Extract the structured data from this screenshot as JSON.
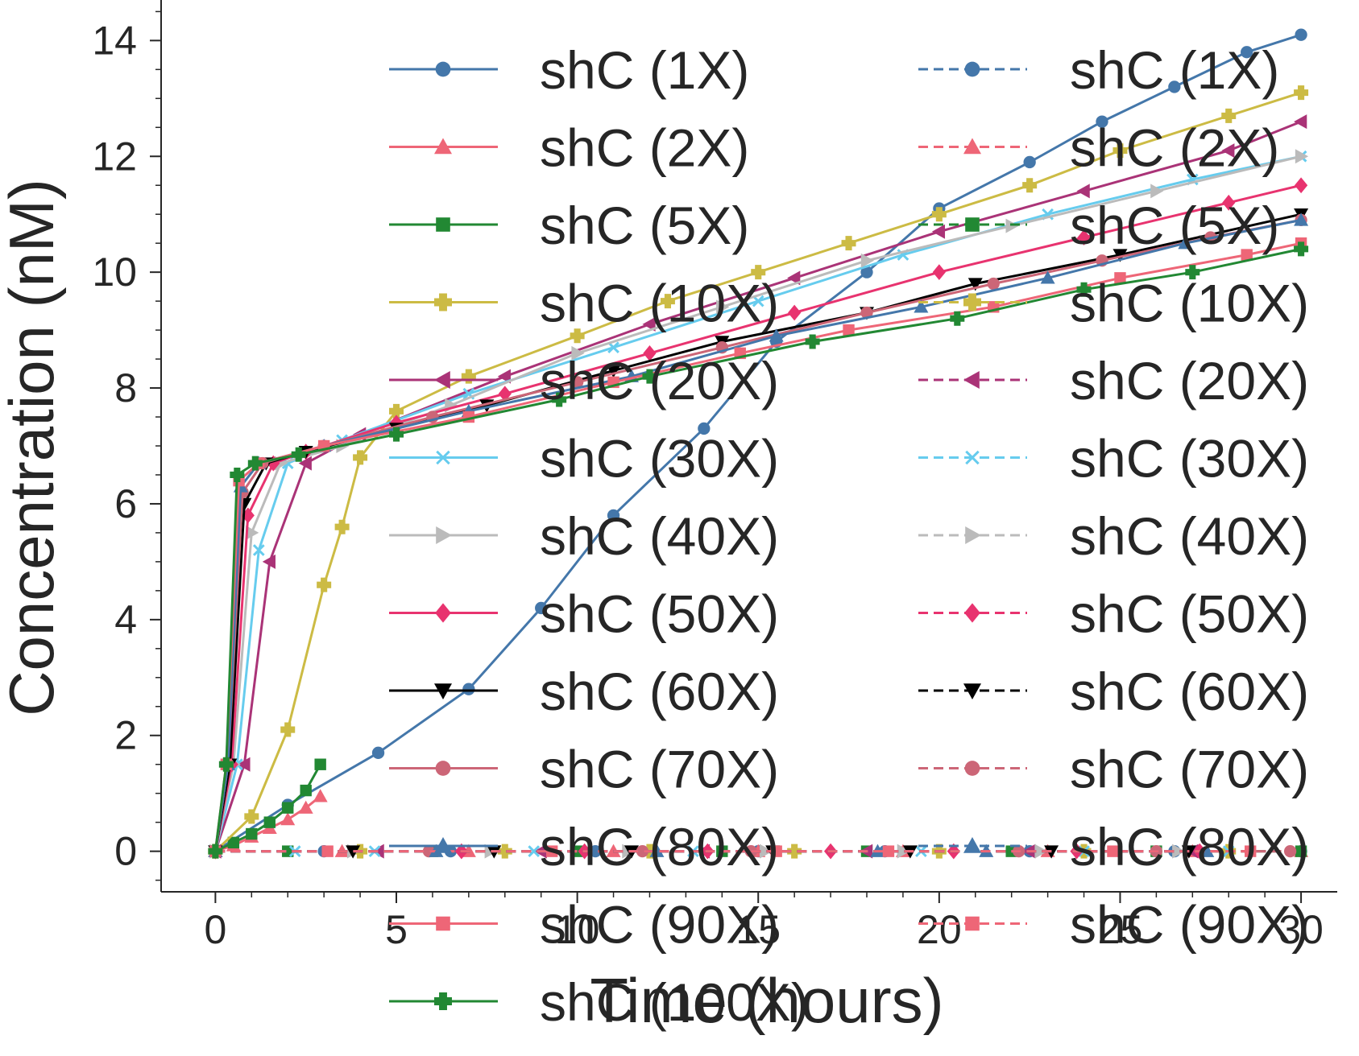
{
  "chart_data": {
    "type": "line",
    "xlabel": "Time (hours)",
    "ylabel": "Concentration (nM)",
    "xlim": [
      -1.5,
      31
    ],
    "ylim": [
      -0.7,
      14.7
    ],
    "xticks": [
      0,
      5,
      10,
      15,
      20,
      25,
      30
    ],
    "yticks": [
      0,
      2,
      4,
      6,
      8,
      10,
      12,
      14
    ],
    "grid": false,
    "legend_position": "top-right, two columns (solid = model, dashed = second set)",
    "series": [
      {
        "name": "shC (1X)",
        "linestyle": "solid",
        "color": "#4477AA",
        "marker": "circle",
        "x": [
          0,
          2,
          4.5,
          7,
          9,
          11,
          13.5,
          15.5,
          18,
          20,
          22.5,
          24.5,
          26.5,
          28.5,
          30
        ],
        "y": [
          0,
          0.8,
          1.7,
          2.8,
          4.2,
          5.8,
          7.3,
          8.8,
          10.0,
          11.1,
          11.9,
          12.6,
          13.2,
          13.8,
          14.1
        ]
      },
      {
        "name": "shC (2X)",
        "linestyle": "solid",
        "color": "#EE6677",
        "marker": "triangle-up",
        "x": [
          0,
          0.5,
          1,
          1.5,
          2,
          2.5,
          2.9
        ],
        "y": [
          0,
          0.1,
          0.25,
          0.4,
          0.55,
          0.75,
          0.95
        ]
      },
      {
        "name": "shC (5X)",
        "linestyle": "solid",
        "color": "#228833",
        "marker": "square",
        "x": [
          0,
          0.5,
          1,
          1.5,
          2,
          2.5,
          2.9
        ],
        "y": [
          0,
          0.15,
          0.3,
          0.5,
          0.75,
          1.05,
          1.5
        ]
      },
      {
        "name": "shC (10X)",
        "linestyle": "solid",
        "color": "#CCBB44",
        "marker": "plus",
        "x": [
          0,
          1,
          2,
          3,
          3.5,
          4,
          5,
          7,
          10,
          12.5,
          15,
          17.5,
          20,
          22.5,
          25,
          28,
          30
        ],
        "y": [
          0,
          0.6,
          2.1,
          4.6,
          5.6,
          6.8,
          7.6,
          8.2,
          8.9,
          9.5,
          10.0,
          10.5,
          11.0,
          11.5,
          12.1,
          12.7,
          13.1
        ]
      },
      {
        "name": "shC (20X)",
        "linestyle": "solid",
        "color": "#AA3377",
        "marker": "triangle-left",
        "x": [
          0,
          0.8,
          1.5,
          2.5,
          4,
          8,
          12,
          16,
          20,
          24,
          28,
          30
        ],
        "y": [
          0,
          1.5,
          5.0,
          6.7,
          7.2,
          8.2,
          9.1,
          9.9,
          10.7,
          11.4,
          12.1,
          12.6
        ]
      },
      {
        "name": "shC (30X)",
        "linestyle": "solid",
        "color": "#66CCEE",
        "marker": "x",
        "x": [
          0,
          0.6,
          1.2,
          2,
          3.5,
          7,
          11,
          15,
          19,
          23,
          27,
          30
        ],
        "y": [
          0,
          1.5,
          5.2,
          6.7,
          7.1,
          7.9,
          8.7,
          9.5,
          10.3,
          11.0,
          11.6,
          12.0
        ]
      },
      {
        "name": "shC (40X)",
        "linestyle": "solid",
        "color": "#BBBBBB",
        "marker": "triangle-right",
        "x": [
          0,
          0.5,
          1,
          1.8,
          3.5,
          6.5,
          10,
          14,
          18,
          22,
          26,
          30
        ],
        "y": [
          0,
          1.5,
          5.5,
          6.7,
          7.0,
          7.7,
          8.6,
          9.4,
          10.2,
          10.8,
          11.4,
          12.0
        ]
      },
      {
        "name": "shC (50X)",
        "linestyle": "solid",
        "color": "#E8336F",
        "marker": "diamond",
        "x": [
          0,
          0.45,
          0.9,
          1.6,
          2.5,
          5,
          8,
          12,
          16,
          20,
          24,
          28,
          30
        ],
        "y": [
          0,
          1.5,
          5.8,
          6.7,
          6.9,
          7.4,
          7.9,
          8.6,
          9.3,
          10.0,
          10.6,
          11.2,
          11.5
        ]
      },
      {
        "name": "shC (60X)",
        "linestyle": "solid",
        "color": "#000000",
        "marker": "triangle-down",
        "x": [
          0,
          0.4,
          0.8,
          1.4,
          2.5,
          5,
          7.5,
          11,
          14,
          18,
          21,
          25,
          30
        ],
        "y": [
          0,
          1.5,
          6.0,
          6.7,
          6.9,
          7.3,
          7.7,
          8.3,
          8.8,
          9.3,
          9.8,
          10.3,
          11.0
        ]
      },
      {
        "name": "shC (70X)",
        "linestyle": "solid",
        "color": "#CC6677",
        "marker": "circle",
        "x": [
          0,
          0.35,
          0.75,
          1.3,
          3,
          6,
          10,
          14,
          18,
          21.5,
          24.5,
          27.5,
          30
        ],
        "y": [
          0,
          1.5,
          6.2,
          6.7,
          7.0,
          7.5,
          8.1,
          8.7,
          9.3,
          9.8,
          10.2,
          10.6,
          10.9
        ]
      },
      {
        "name": "shC (80X)",
        "linestyle": "solid",
        "color": "#4477AA",
        "marker": "triangle-up",
        "x": [
          0,
          0.35,
          0.7,
          1.2,
          3,
          7,
          11.5,
          15.5,
          19.5,
          23,
          26.8,
          30
        ],
        "y": [
          0,
          1.5,
          6.3,
          6.7,
          7.0,
          7.6,
          8.2,
          8.9,
          9.4,
          9.9,
          10.5,
          10.9
        ]
      },
      {
        "name": "shC (90X)",
        "linestyle": "solid",
        "color": "#EE6677",
        "marker": "square",
        "x": [
          0,
          0.3,
          0.65,
          1.2,
          3,
          7,
          11,
          14.5,
          17.5,
          21.5,
          25,
          28.5,
          30
        ],
        "y": [
          0,
          1.5,
          6.4,
          6.7,
          7.0,
          7.5,
          8.1,
          8.6,
          9.0,
          9.4,
          9.9,
          10.3,
          10.5
        ]
      },
      {
        "name": "shC (100X)",
        "linestyle": "solid",
        "color": "#228833",
        "marker": "plus",
        "x": [
          0,
          0.3,
          0.6,
          1.1,
          2.3,
          5,
          9.5,
          12,
          16.5,
          20.5,
          24,
          27,
          30
        ],
        "y": [
          0,
          1.5,
          6.5,
          6.7,
          6.85,
          7.2,
          7.8,
          8.2,
          8.8,
          9.2,
          9.7,
          10.0,
          10.4
        ]
      },
      {
        "name": "shC (1X)",
        "linestyle": "dashed",
        "color": "#4477AA",
        "marker": "circle",
        "x": [
          0,
          3,
          6.5,
          10.5,
          15,
          18.5,
          22.5,
          26.5,
          30
        ],
        "y": [
          0,
          0,
          0,
          0,
          0,
          0,
          0,
          0,
          0
        ]
      },
      {
        "name": "shC (2X)",
        "linestyle": "dashed",
        "color": "#EE6677",
        "marker": "triangle-up",
        "x": [
          0,
          3.5,
          7,
          11,
          15,
          19,
          23,
          27,
          30
        ],
        "y": [
          0,
          0,
          0,
          0,
          0,
          0,
          0,
          0,
          0
        ]
      },
      {
        "name": "shC (5X)",
        "linestyle": "dashed",
        "color": "#228833",
        "marker": "square",
        "x": [
          0,
          2,
          6,
          10,
          14,
          18,
          22,
          26,
          30
        ],
        "y": [
          0,
          0,
          0,
          0,
          0,
          0,
          0,
          0,
          0
        ]
      },
      {
        "name": "shC (10X)",
        "linestyle": "dashed",
        "color": "#CCBB44",
        "marker": "plus",
        "x": [
          0,
          4,
          8,
          12,
          16,
          20,
          24,
          28
        ],
        "y": [
          0,
          0,
          0,
          0,
          0,
          0,
          0,
          0
        ]
      },
      {
        "name": "shC (20X)",
        "linestyle": "dashed",
        "color": "#AA3377",
        "marker": "triangle-left",
        "x": [
          0,
          4.5,
          9,
          13.5,
          18,
          22.5,
          27
        ],
        "y": [
          0,
          0,
          0,
          0,
          0,
          0,
          0
        ]
      },
      {
        "name": "shC (30X)",
        "linestyle": "dashed",
        "color": "#66CCEE",
        "marker": "x",
        "x": [
          0,
          2.2,
          4.4,
          8.8,
          13.2,
          19.5,
          24,
          28
        ],
        "y": [
          0,
          0,
          0,
          0,
          0,
          0,
          0,
          0
        ]
      },
      {
        "name": "shC (40X)",
        "linestyle": "dashed",
        "color": "#BBBBBB",
        "marker": "triangle-right",
        "x": [
          0,
          3.8,
          7.6,
          11.4,
          15.2,
          19,
          22.8,
          26.6
        ],
        "y": [
          0,
          0,
          0,
          0,
          0,
          0,
          0,
          0
        ]
      },
      {
        "name": "shC (50X)",
        "linestyle": "dashed",
        "color": "#E8336F",
        "marker": "diamond",
        "x": [
          0,
          6.8,
          10.2,
          13.6,
          17,
          20.4,
          23.8,
          27.2
        ],
        "y": [
          0,
          0,
          0,
          0,
          0,
          0,
          0,
          0
        ]
      },
      {
        "name": "shC (60X)",
        "linestyle": "dashed",
        "color": "#000000",
        "marker": "triangle-down",
        "x": [
          0,
          3.8,
          7.7,
          11.5,
          15.4,
          19.2,
          23.1,
          26.9
        ],
        "y": [
          0,
          0,
          0,
          0,
          0,
          0,
          0,
          0
        ]
      },
      {
        "name": "shC (70X)",
        "linestyle": "dashed",
        "color": "#CC6677",
        "marker": "circle",
        "x": [
          0,
          5.9,
          11.8,
          14.8,
          22.2,
          26,
          29.7
        ],
        "y": [
          0,
          0,
          0,
          0,
          0,
          0,
          0
        ]
      },
      {
        "name": "shC (80X)",
        "linestyle": "dashed",
        "color": "#4477AA",
        "marker": "triangle-up",
        "x": [
          0,
          6.1,
          12.2,
          18.3,
          21.3,
          27.4
        ],
        "y": [
          0,
          0,
          0,
          0,
          0,
          0
        ]
      },
      {
        "name": "shC (90X)",
        "linestyle": "dashed",
        "color": "#EE6677",
        "marker": "square",
        "x": [
          0,
          3.1,
          9.3,
          15.5,
          18.6,
          24.8,
          28.6
        ],
        "y": [
          0,
          0,
          0,
          0,
          0,
          0,
          0
        ]
      }
    ]
  }
}
